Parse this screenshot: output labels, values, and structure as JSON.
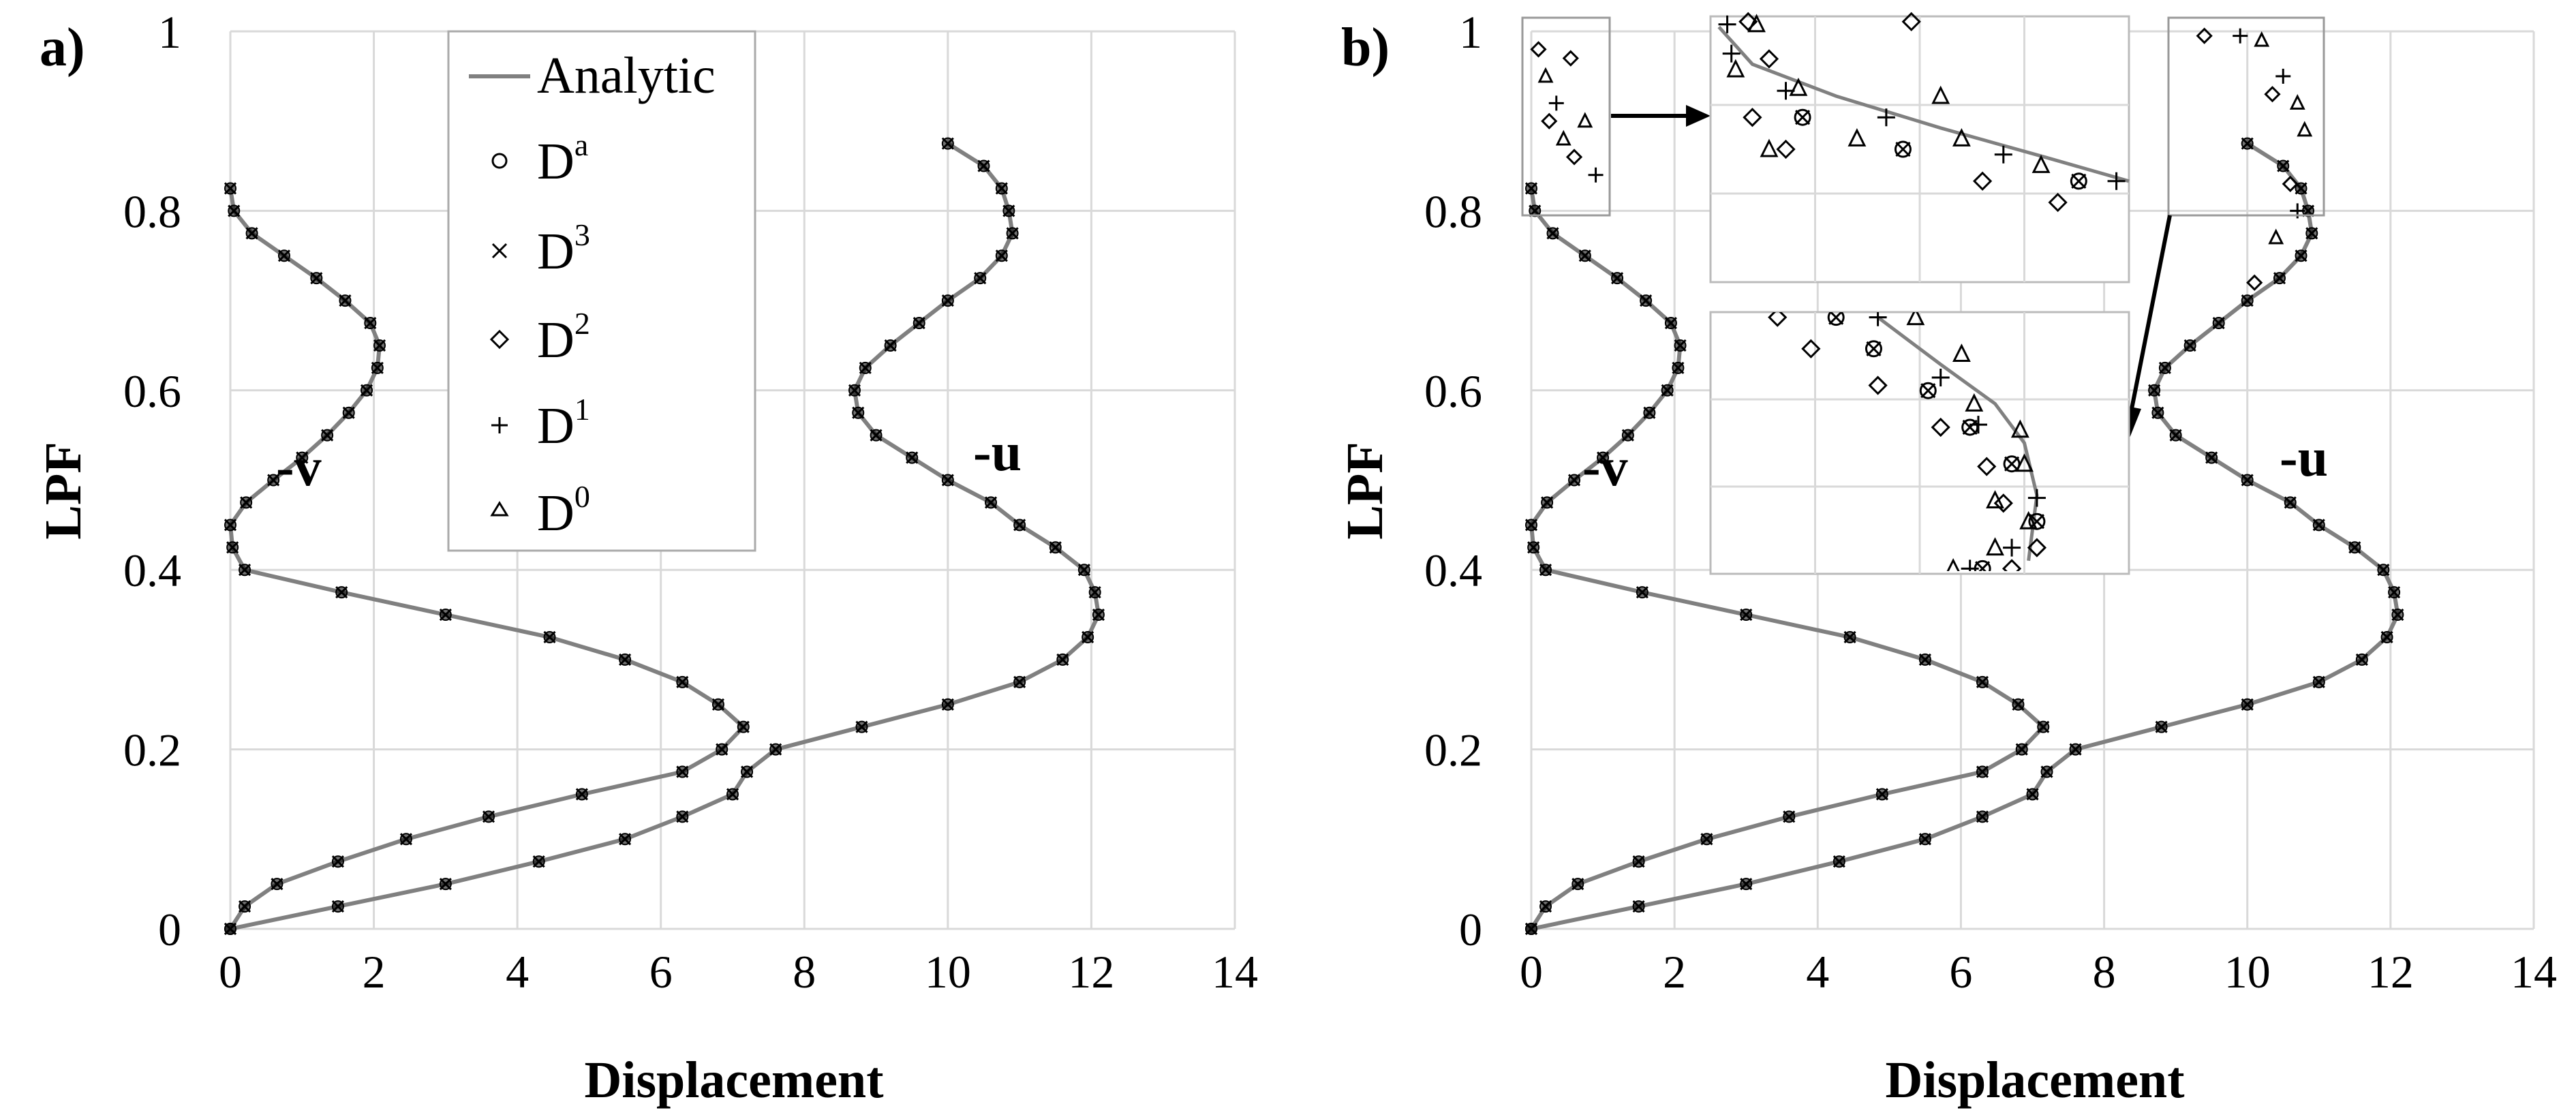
{
  "chart_data": [
    {
      "panel_label": "a)",
      "type": "line",
      "xlabel": "Displacement",
      "ylabel": "LPF",
      "xlim": [
        0,
        14
      ],
      "ylim": [
        0,
        1
      ],
      "xticks": [
        "0",
        "2",
        "4",
        "6",
        "8",
        "10",
        "12",
        "14"
      ],
      "yticks": [
        "0",
        "0.2",
        "0.4",
        "0.6",
        "0.8",
        "1"
      ],
      "grid": true,
      "legend_position": "top-center",
      "legend": [
        {
          "label": "Analytic",
          "sup": "",
          "marker": "line"
        },
        {
          "label": "D",
          "sup": "a",
          "marker": "circle"
        },
        {
          "label": "D",
          "sup": "3",
          "marker": "x"
        },
        {
          "label": "D",
          "sup": "2",
          "marker": "diamond"
        },
        {
          "label": "D",
          "sup": "1",
          "marker": "plus"
        },
        {
          "label": "D",
          "sup": "0",
          "marker": "triangle"
        }
      ],
      "curve_labels": [
        "-v",
        "-u"
      ],
      "series": [
        {
          "name": "-v",
          "x": [
            0,
            0.2,
            0.65,
            1.5,
            2.45,
            3.6,
            4.9,
            6.3,
            6.85,
            7.15,
            6.8,
            6.3,
            5.5,
            4.45,
            3.0,
            1.55,
            0.2,
            0.03,
            0.0,
            0.22,
            0.6,
            1.0,
            1.35,
            1.65,
            1.9,
            2.05,
            2.08,
            1.95,
            1.6,
            1.2,
            0.75,
            0.3,
            0.05,
            0.0
          ],
          "y": [
            0,
            0.025,
            0.05,
            0.075,
            0.1,
            0.125,
            0.15,
            0.175,
            0.2,
            0.225,
            0.25,
            0.275,
            0.3,
            0.325,
            0.35,
            0.375,
            0.4,
            0.425,
            0.45,
            0.475,
            0.5,
            0.525,
            0.55,
            0.575,
            0.6,
            0.625,
            0.65,
            0.675,
            0.7,
            0.725,
            0.75,
            0.775,
            0.8,
            0.825
          ]
        },
        {
          "name": "-u",
          "x": [
            0,
            1.5,
            3.0,
            4.3,
            5.5,
            6.3,
            7.0,
            7.2,
            7.6,
            8.8,
            10.0,
            11.0,
            11.6,
            11.95,
            12.1,
            12.05,
            11.9,
            11.5,
            11.0,
            10.6,
            10.0,
            9.5,
            9.0,
            8.75,
            8.7,
            8.85,
            9.2,
            9.6,
            10.0,
            10.45,
            10.75,
            10.9,
            10.85,
            10.75,
            10.5,
            10.0
          ],
          "y": [
            0,
            0.025,
            0.05,
            0.075,
            0.1,
            0.125,
            0.15,
            0.175,
            0.2,
            0.225,
            0.25,
            0.275,
            0.3,
            0.325,
            0.35,
            0.375,
            0.4,
            0.425,
            0.45,
            0.475,
            0.5,
            0.525,
            0.55,
            0.575,
            0.6,
            0.625,
            0.65,
            0.675,
            0.7,
            0.725,
            0.75,
            0.775,
            0.8,
            0.825,
            0.85,
            0.875
          ]
        }
      ],
      "notes": "Markers D^a, D^3, D^2, D^1, D^0 coincide with the Analytic curve at every 0.025 LPF step on both curves."
    },
    {
      "panel_label": "b)",
      "type": "line",
      "xlabel": "Displacement",
      "ylabel": "LPF",
      "xlim": [
        0,
        14
      ],
      "ylim": [
        0,
        1
      ],
      "xticks": [
        "0",
        "2",
        "4",
        "6",
        "8",
        "10",
        "12",
        "14"
      ],
      "yticks": [
        "0",
        "0.2",
        "0.4",
        "0.6",
        "0.8",
        "1"
      ],
      "grid": true,
      "curve_labels": [
        "-v",
        "-u"
      ],
      "insets": [
        "zoom of -v near LPF 0.85-1.0",
        "zoom of -u near LPF 0.8-1.0"
      ],
      "notes": "Same analytic curves as panel a; approximations D^2, D^1, D^0 diverge from Analytic above LPF 0.8."
    }
  ]
}
